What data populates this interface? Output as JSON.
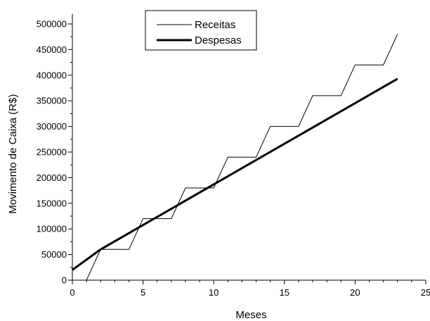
{
  "chart_data": {
    "type": "line",
    "title": "",
    "xlabel": "Meses",
    "ylabel": "Movimento de Caixa (R$)",
    "xlim": [
      0,
      25
    ],
    "ylim": [
      0,
      520000
    ],
    "x_ticks": [
      0,
      5,
      10,
      15,
      20,
      25
    ],
    "y_ticks": [
      0,
      50000,
      100000,
      150000,
      200000,
      250000,
      300000,
      350000,
      400000,
      450000,
      500000
    ],
    "x_minor_step": 1,
    "y_minor_step": 25000,
    "grid": false,
    "legend_position": "top-center",
    "series": [
      {
        "name": "Receitas",
        "line_width": "thin",
        "points": [
          [
            1,
            0
          ],
          [
            2,
            60000
          ],
          [
            4,
            60000
          ],
          [
            5,
            120000
          ],
          [
            7,
            120000
          ],
          [
            8,
            180000
          ],
          [
            10,
            180000
          ],
          [
            11,
            240000
          ],
          [
            13,
            240000
          ],
          [
            14,
            300000
          ],
          [
            16,
            300000
          ],
          [
            17,
            360000
          ],
          [
            19,
            360000
          ],
          [
            20,
            420000
          ],
          [
            22,
            420000
          ],
          [
            23,
            480000
          ]
        ]
      },
      {
        "name": "Despesas",
        "line_width": "thick",
        "points": [
          [
            0,
            20000
          ],
          [
            2,
            60000
          ],
          [
            23,
            393000
          ]
        ]
      }
    ]
  }
}
